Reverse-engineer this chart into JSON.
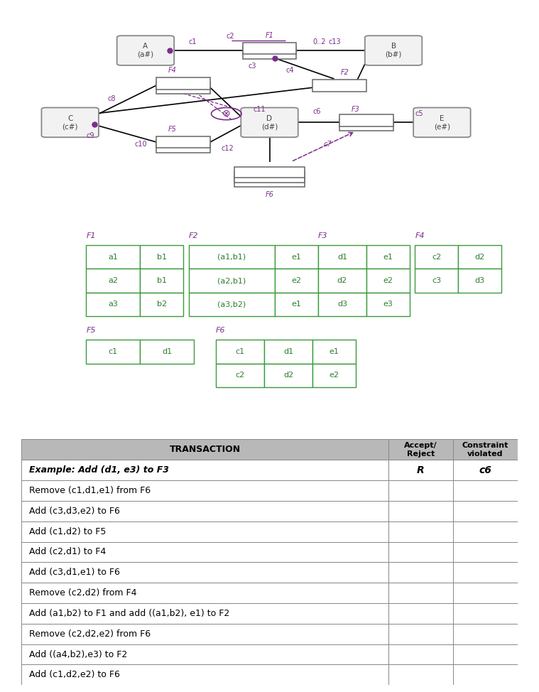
{
  "bg_color": "#ffffff",
  "purple": "#7B2D8B",
  "dark": "#444444",
  "green_edge": "#3a9a3a",
  "entity_edge": "#888888",
  "entity_face": "#eeeeee",
  "rel_edge": "#666666",
  "table_rows": [
    {
      "text": "TRANSACTION",
      "accept": "Accept/\nReject",
      "constraint": "Constraint\nviolated",
      "header": true
    },
    {
      "text": "Example: Add (d1, e3) to F3",
      "accept": "R",
      "constraint": "c6",
      "example": true
    },
    {
      "text": "Remove (c1,d1,e1) from F6",
      "accept": "",
      "constraint": ""
    },
    {
      "text": "Add (c3,d3,e2) to F6",
      "accept": "",
      "constraint": ""
    },
    {
      "text": "Add (c1,d2) to F5",
      "accept": "",
      "constraint": ""
    },
    {
      "text": "Add (c2,d1) to F4",
      "accept": "",
      "constraint": ""
    },
    {
      "text": "Add (c3,d1,e1) to F6",
      "accept": "",
      "constraint": ""
    },
    {
      "text": "Remove (c2,d2) from F4",
      "accept": "",
      "constraint": ""
    },
    {
      "text": "Add (a1,b2) to F1 and add ((a1,b2), e1) to F2",
      "accept": "",
      "constraint": ""
    },
    {
      "text": "Remove (c2,d2,e2) from F6",
      "accept": "",
      "constraint": ""
    },
    {
      "text": "Add ((a4,b2),e3) to F2",
      "accept": "",
      "constraint": ""
    },
    {
      "text": "Add (c1,d2,e2) to F6",
      "accept": "",
      "constraint": ""
    }
  ]
}
